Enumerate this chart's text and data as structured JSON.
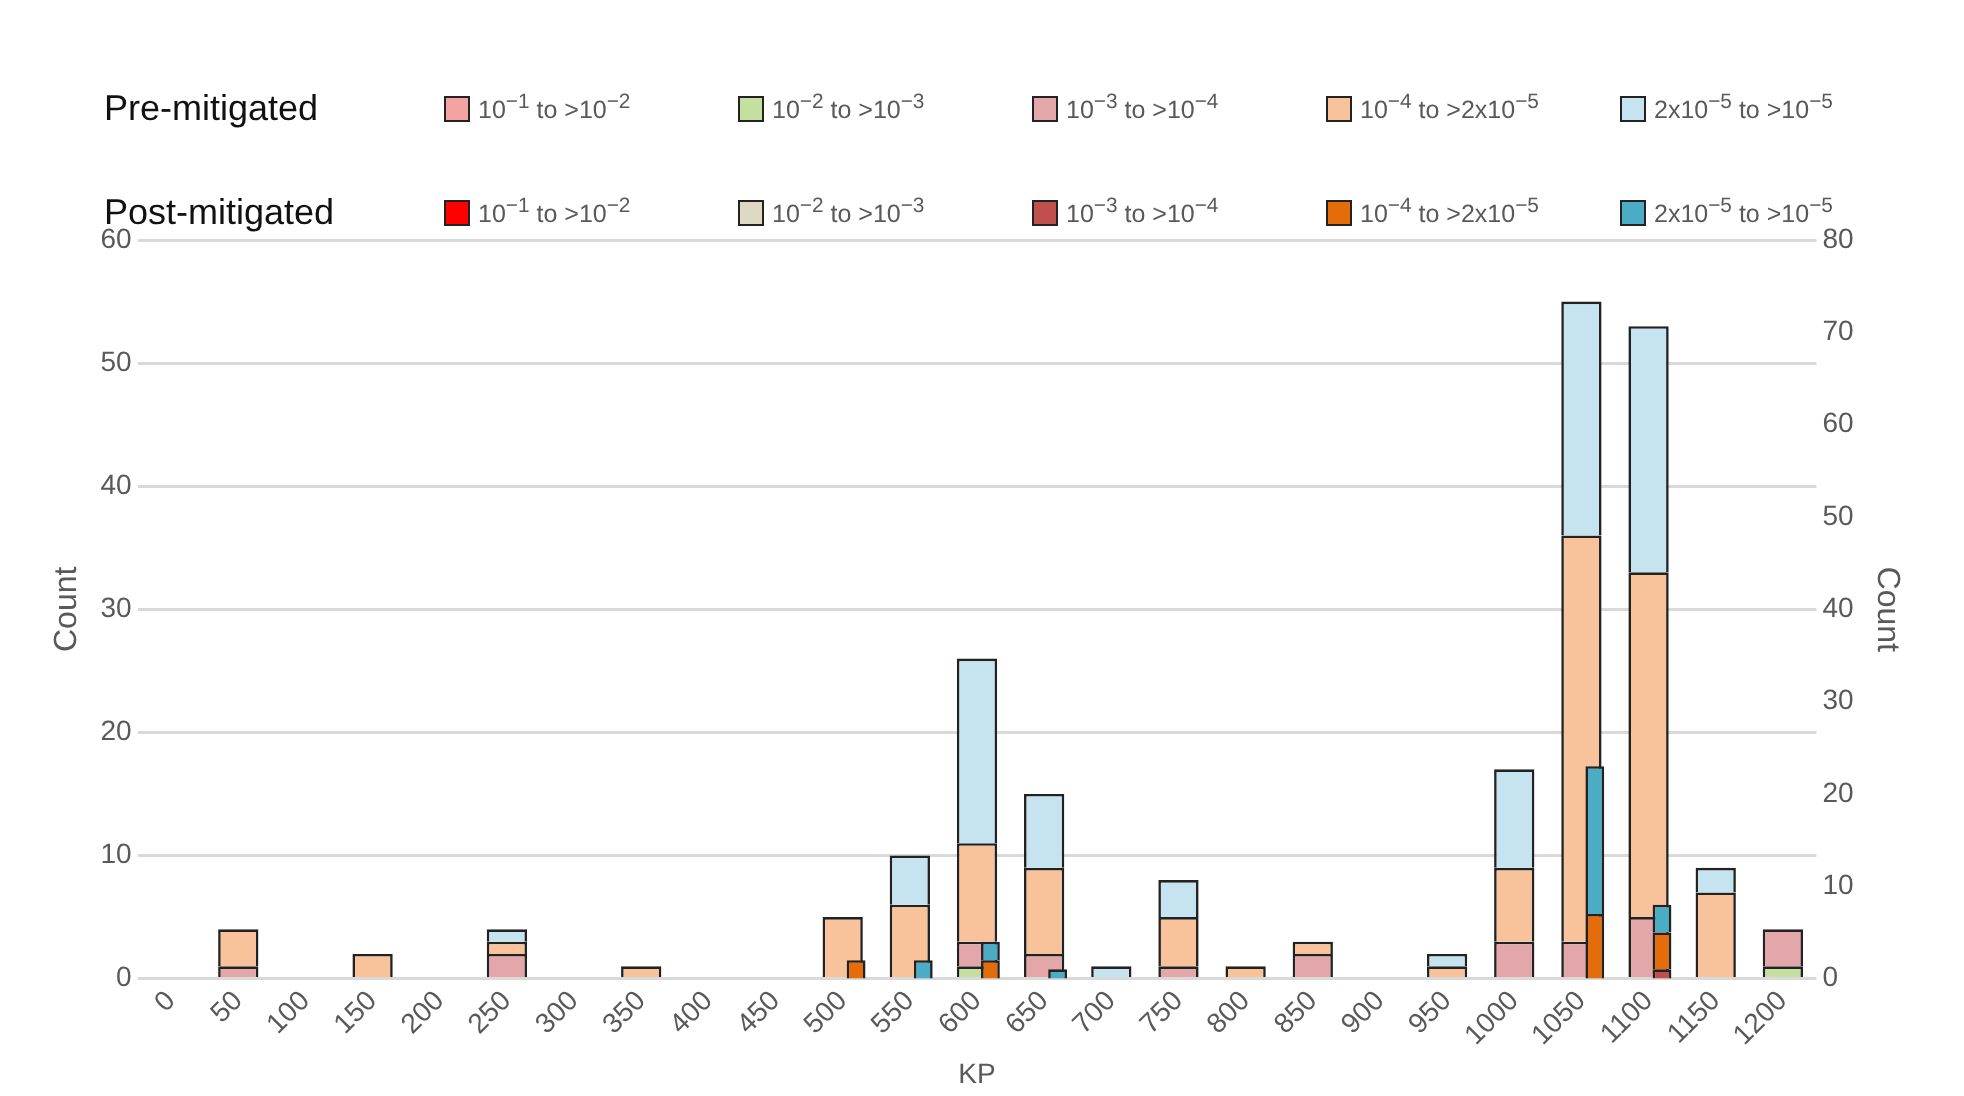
{
  "chart_data": {
    "type": "bar",
    "stacked": true,
    "xlabel": "KP",
    "ylabel": "Count",
    "y2label": "Count",
    "categories": [
      "0",
      "50",
      "100",
      "150",
      "200",
      "250",
      "300",
      "350",
      "400",
      "450",
      "500",
      "550",
      "600",
      "650",
      "700",
      "750",
      "800",
      "850",
      "900",
      "950",
      "1000",
      "1050",
      "1100",
      "1150",
      "1200"
    ],
    "series": [
      {
        "name": "10$^{−1}$ to >10$^{−2}$",
        "color": "#f4a3a3",
        "values": [
          0,
          0,
          0,
          0,
          0,
          0,
          0,
          0,
          0,
          0,
          0,
          0,
          0,
          0,
          0,
          0,
          0,
          0,
          0,
          0,
          0,
          0,
          0,
          0,
          0
        ]
      },
      {
        "name": "10$^{−2}$ to >10$^{−3}$",
        "color": "#c5dfa0",
        "values": [
          0,
          0,
          0,
          0,
          0,
          0,
          0,
          0,
          0,
          0,
          0,
          0,
          1,
          0,
          0,
          0,
          0,
          0,
          0,
          0,
          0,
          0,
          0,
          0,
          1
        ]
      },
      {
        "name": "10$^{−3}$ to >10$^{−4}$",
        "color": "#e3a7aa",
        "values": [
          0,
          1,
          0,
          0,
          0,
          2,
          0,
          0,
          0,
          0,
          0,
          0,
          2,
          2,
          0,
          1,
          0,
          2,
          0,
          0,
          3,
          3,
          5,
          0,
          3
        ]
      },
      {
        "name": "10$^{−4}$ to >2x10$^{−5}$",
        "color": "#f8c39a",
        "values": [
          0,
          3,
          0,
          2,
          0,
          1,
          0,
          1,
          0,
          0,
          5,
          6,
          8,
          7,
          0,
          4,
          1,
          1,
          0,
          1,
          6,
          33,
          28,
          7,
          0
        ]
      },
      {
        "name": "2x10$^{−5}$ to >10$^{−5}$",
        "color": "#c6e4ef",
        "values": [
          0,
          0,
          0,
          0,
          0,
          1,
          0,
          0,
          0,
          0,
          0,
          4,
          15,
          6,
          1,
          3,
          0,
          0,
          0,
          1,
          8,
          19,
          20,
          2,
          0
        ]
      },
      {
        "name": "10$^{−1}$ to >10$^{−2}$",
        "color": "#ff0000",
        "axis": "y2",
        "values": [
          0,
          0,
          0,
          0,
          0,
          0,
          0,
          0,
          0,
          0,
          0,
          0,
          0,
          0,
          0,
          0,
          0,
          0,
          0,
          0,
          0,
          0,
          0,
          0,
          0
        ]
      },
      {
        "name": "10$^{−2}$ to >10$^{−3}$",
        "color": "#ddd9c3",
        "axis": "y2",
        "values": [
          0,
          0,
          0,
          0,
          0,
          0,
          0,
          0,
          0,
          0,
          0,
          0,
          0,
          0,
          0,
          0,
          0,
          0,
          0,
          0,
          0,
          0,
          0,
          0,
          0
        ]
      },
      {
        "name": "10$^{−3}$ to >10$^{−4}$",
        "color": "#c0504d",
        "axis": "y2",
        "values": [
          0,
          0,
          0,
          0,
          0,
          0,
          0,
          0,
          0,
          0,
          0,
          0,
          0,
          0,
          0,
          0,
          0,
          0,
          0,
          0,
          0,
          0,
          1,
          0,
          0
        ]
      },
      {
        "name": "10$^{−4}$ to >2x10$^{−5}$",
        "color": "#e46c0a",
        "axis": "y2",
        "values": [
          0,
          0,
          0,
          0,
          0,
          0,
          0,
          0,
          0,
          0,
          2,
          0,
          2,
          0,
          0,
          0,
          0,
          0,
          0,
          0,
          0,
          7,
          4,
          0,
          0
        ]
      },
      {
        "name": "2x10$^{−5}$ to >10$^{−5}$",
        "color": "#4bacc6",
        "axis": "y2",
        "values": [
          0,
          0,
          0,
          0,
          0,
          0,
          0,
          0,
          0,
          0,
          0,
          2,
          2,
          1,
          0,
          0,
          0,
          0,
          0,
          0,
          0,
          16,
          3,
          0,
          0
        ]
      }
    ],
    "ylim": [
      0,
      60
    ],
    "yticks": [
      0,
      10,
      20,
      30,
      40,
      50,
      60
    ],
    "y2lim": [
      0,
      80
    ],
    "y2ticks": [
      0,
      10,
      20,
      30,
      40,
      50,
      60,
      70,
      80
    ],
    "annotations": [
      "Pre-mitigated",
      "Post-mitigated"
    ],
    "grid": "y",
    "legend": "top"
  }
}
